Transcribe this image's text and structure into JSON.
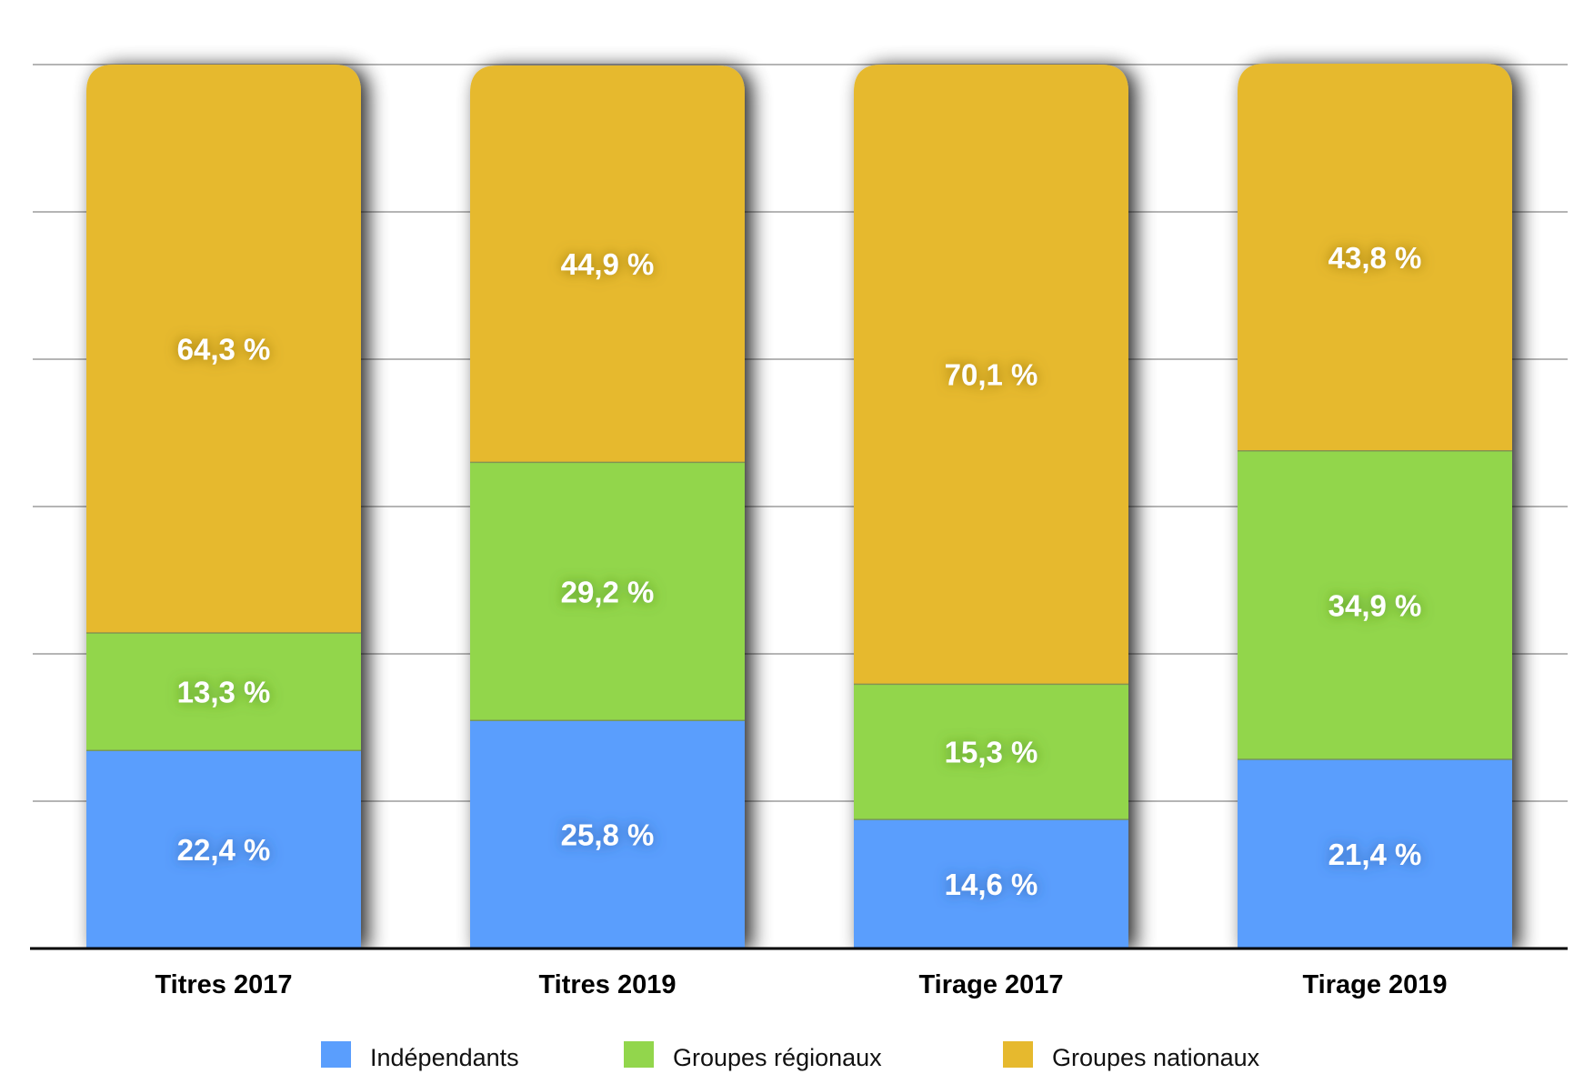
{
  "chart_data": {
    "type": "bar",
    "stacked": true,
    "title": "",
    "xlabel": "",
    "ylabel": "",
    "ylim": [
      0,
      100
    ],
    "grid": true,
    "gridline_count": 6,
    "y_tick_labels_visible": false,
    "legend_position": "bottom",
    "categories": [
      "Titres 2017",
      "Titres 2019",
      "Tirage 2017",
      "Tirage 2019"
    ],
    "series": [
      {
        "name": "Indépendants",
        "color": "#5A9EFD",
        "label_shadow": "#2F5FA8",
        "values": [
          22.4,
          25.8,
          14.6,
          21.4
        ],
        "labels": [
          "22,4 %",
          "25,8 %",
          "14,6 %",
          "21,4 %"
        ]
      },
      {
        "name": "Groupes régionaux",
        "color": "#92D64C",
        "label_shadow": "#4E8A1E",
        "values": [
          13.3,
          29.2,
          15.3,
          34.9
        ],
        "labels": [
          "13,3 %",
          "29,2 %",
          "15,3 %",
          "34,9 %"
        ]
      },
      {
        "name": "Groupes nationaux",
        "color": "#E6B92E",
        "label_shadow": "#8A6A0C",
        "values": [
          64.3,
          44.9,
          70.1,
          43.8
        ],
        "labels": [
          "64,3 %",
          "44,9 %",
          "70,1 %",
          "43,8 %"
        ]
      }
    ]
  }
}
